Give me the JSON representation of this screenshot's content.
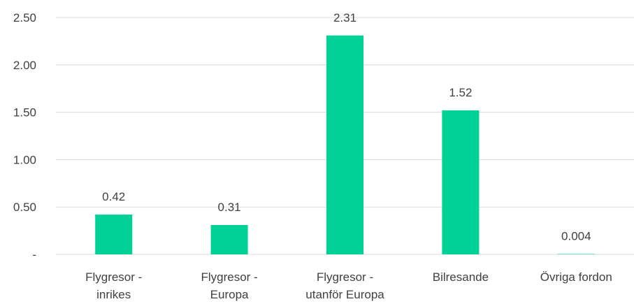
{
  "chart_data": {
    "type": "bar",
    "title": "",
    "xlabel": "",
    "ylabel": "",
    "categories": [
      [
        "Flygresor -",
        "inrikes"
      ],
      [
        "Flygresor -",
        "Europa"
      ],
      [
        "Flygresor -",
        "utanför Europa"
      ],
      [
        "Bilresande"
      ],
      [
        "Övriga fordon"
      ]
    ],
    "values": [
      0.42,
      0.31,
      2.31,
      1.52,
      0.004
    ],
    "data_labels": [
      "0.42",
      "0.31",
      "2.31",
      "1.52",
      "0.004"
    ],
    "ylim": [
      0,
      2.5
    ],
    "y_ticks": [
      0,
      0.5,
      1.0,
      1.5,
      2.0,
      2.5
    ],
    "y_tick_labels": [
      "-",
      "0.50",
      "1.00",
      "1.50",
      "2.00",
      "2.50"
    ],
    "grid": true,
    "legend": "none",
    "colors": {
      "bar": "#00d197",
      "grid": "#d9d9d9",
      "text": "#404040"
    }
  }
}
